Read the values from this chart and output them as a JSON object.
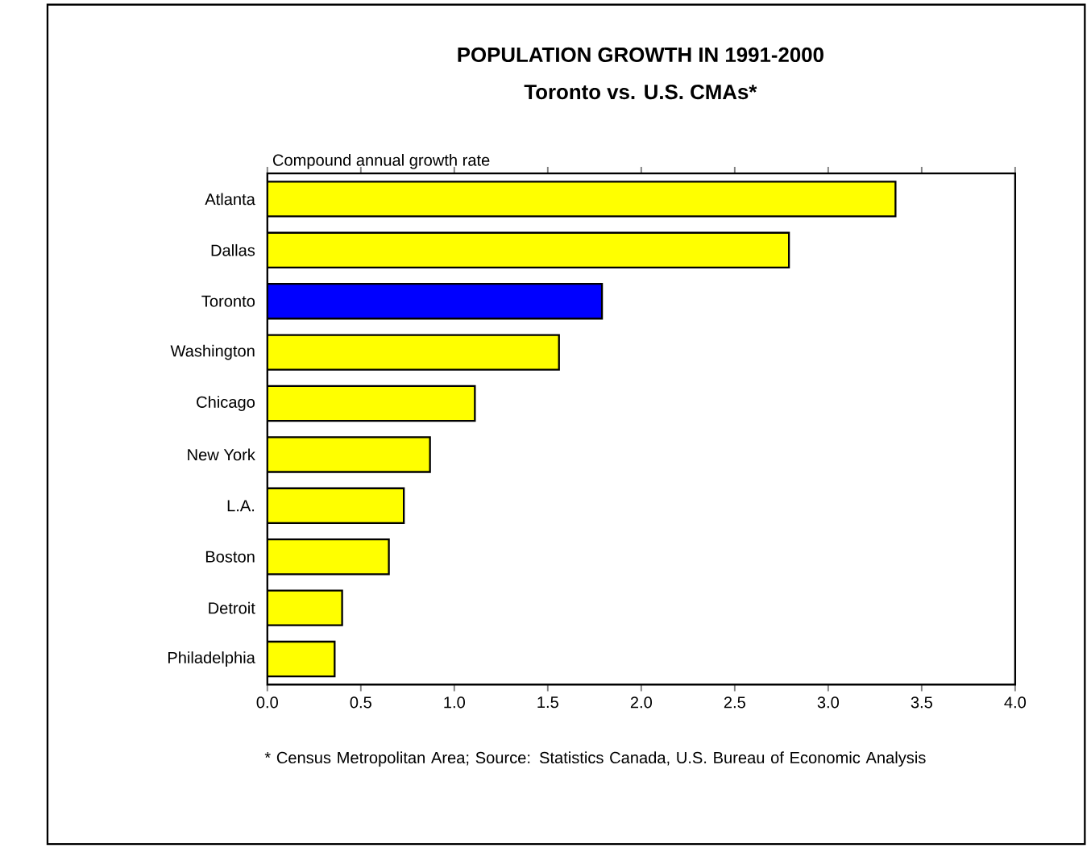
{
  "chart_data": {
    "type": "bar",
    "orientation": "horizontal",
    "title": "POPULATION GROWTH IN 1991-2000",
    "subtitle": "Toronto vs. U.S. CMAs*",
    "xlabel": "Compound annual growth rate",
    "categories": [
      "Atlanta",
      "Dallas",
      "Toronto",
      "Washington",
      "Chicago",
      "New York",
      "L.A.",
      "Boston",
      "Detroit",
      "Philadelphia"
    ],
    "values": [
      3.36,
      2.79,
      1.79,
      1.56,
      1.11,
      0.87,
      0.73,
      0.65,
      0.4,
      0.36
    ],
    "colors": [
      "#ffff00",
      "#ffff00",
      "#0000ff",
      "#ffff00",
      "#ffff00",
      "#ffff00",
      "#ffff00",
      "#ffff00",
      "#ffff00",
      "#ffff00"
    ],
    "xlim": [
      0,
      4
    ],
    "xticks": [
      {
        "value": 0,
        "label": "0.0"
      },
      {
        "value": 0.5,
        "label": "0.5"
      },
      {
        "value": 1,
        "label": "1.0"
      },
      {
        "value": 1.5,
        "label": "1.5"
      },
      {
        "value": 2,
        "label": "2.0"
      },
      {
        "value": 2.5,
        "label": "2.5"
      },
      {
        "value": 3,
        "label": "3.0"
      },
      {
        "value": 3.5,
        "label": "3.5"
      },
      {
        "value": 4,
        "label": "4.0"
      }
    ],
    "annotations": [
      "* Census Metropolitan Area; Source: Statistics Canada, U.S. Bureau of Economic Analysis"
    ]
  }
}
